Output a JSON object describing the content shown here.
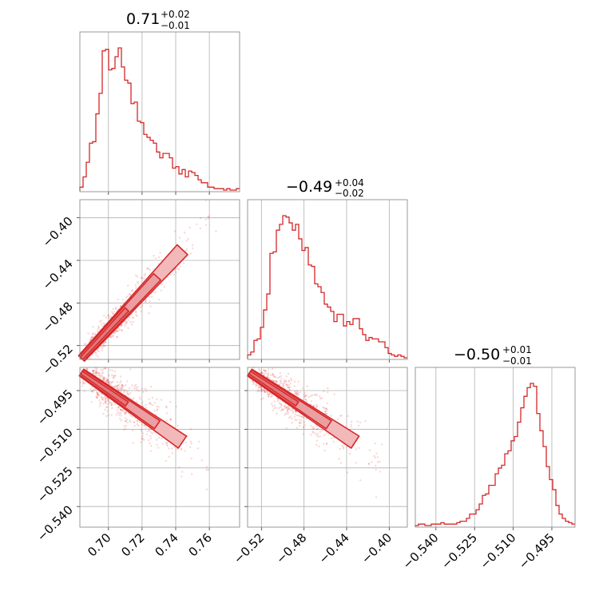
{
  "chart_data": {
    "type": "corner",
    "color": "#d62728",
    "fill_color": "#f2b8ba",
    "parameters": [
      {
        "title_median": "0.71",
        "title_plus": "+0.02",
        "title_minus": "−0.01",
        "range": [
          0.683,
          0.778
        ]
      },
      {
        "title_median": "−0.49",
        "title_plus": "+0.04",
        "title_minus": "−0.02",
        "range": [
          -0.533,
          -0.383
        ]
      },
      {
        "title_median": "−0.50",
        "title_plus": "+0.01",
        "title_minus": "−0.01",
        "range": [
          -0.548,
          -0.486
        ]
      }
    ],
    "ticks": {
      "p0": {
        "values": [
          0.7,
          0.72,
          0.74,
          0.76
        ],
        "labels": [
          "0.70",
          "0.72",
          "0.74",
          "0.76"
        ]
      },
      "p1": {
        "values": [
          -0.52,
          -0.48,
          -0.44,
          -0.4
        ],
        "labels": [
          "−0.52",
          "−0.48",
          "−0.44",
          "−0.40"
        ]
      },
      "p2": {
        "values": [
          -0.54,
          -0.525,
          -0.51,
          -0.495
        ],
        "labels": [
          "−0.540",
          "−0.525",
          "−0.510",
          "−0.495"
        ]
      }
    },
    "histograms": {
      "p0": [
        2,
        9,
        19,
        32,
        33,
        52,
        66,
        95,
        96,
        82,
        83,
        91,
        97,
        84,
        75,
        73,
        59,
        60,
        47,
        46,
        38,
        36,
        34,
        32,
        26,
        22,
        25,
        25,
        22,
        15,
        16,
        11,
        14,
        9,
        13,
        12,
        10,
        7,
        5,
        5,
        2,
        2,
        1,
        1,
        1,
        0,
        1,
        0,
        0,
        1
      ],
      "p1": [
        2,
        4,
        12,
        13,
        21,
        33,
        44,
        72,
        73,
        88,
        92,
        98,
        97,
        93,
        88,
        92,
        82,
        74,
        76,
        64,
        63,
        51,
        49,
        45,
        37,
        35,
        32,
        25,
        30,
        30,
        22,
        25,
        23,
        27,
        27,
        20,
        16,
        12,
        14,
        13,
        13,
        11,
        11,
        7,
        3,
        2,
        1,
        2,
        1,
        0
      ],
      "p2": [
        0,
        1,
        1,
        0,
        0,
        1,
        1,
        1,
        2,
        1,
        1,
        1,
        1,
        2,
        3,
        3,
        5,
        8,
        8,
        11,
        15,
        21,
        22,
        28,
        28,
        36,
        40,
        42,
        50,
        52,
        59,
        62,
        72,
        82,
        90,
        96,
        99,
        97,
        78,
        66,
        55,
        41,
        32,
        25,
        14,
        8,
        5,
        3,
        2,
        1
      ]
    },
    "pairs": [
      {
        "x": "p0",
        "y": "p1",
        "trend": [
          [
            0.684,
            -0.532
          ],
          [
            0.744,
            -0.43
          ]
        ],
        "spread": 0.004
      },
      {
        "x": "p0",
        "y": "p2",
        "trend": [
          [
            0.684,
            -0.488
          ],
          [
            0.744,
            -0.515
          ]
        ],
        "spread": 0.0025
      },
      {
        "x": "p1",
        "y": "p2",
        "trend": [
          [
            -0.531,
            -0.488
          ],
          [
            -0.432,
            -0.515
          ]
        ],
        "spread": 0.0025
      }
    ]
  }
}
